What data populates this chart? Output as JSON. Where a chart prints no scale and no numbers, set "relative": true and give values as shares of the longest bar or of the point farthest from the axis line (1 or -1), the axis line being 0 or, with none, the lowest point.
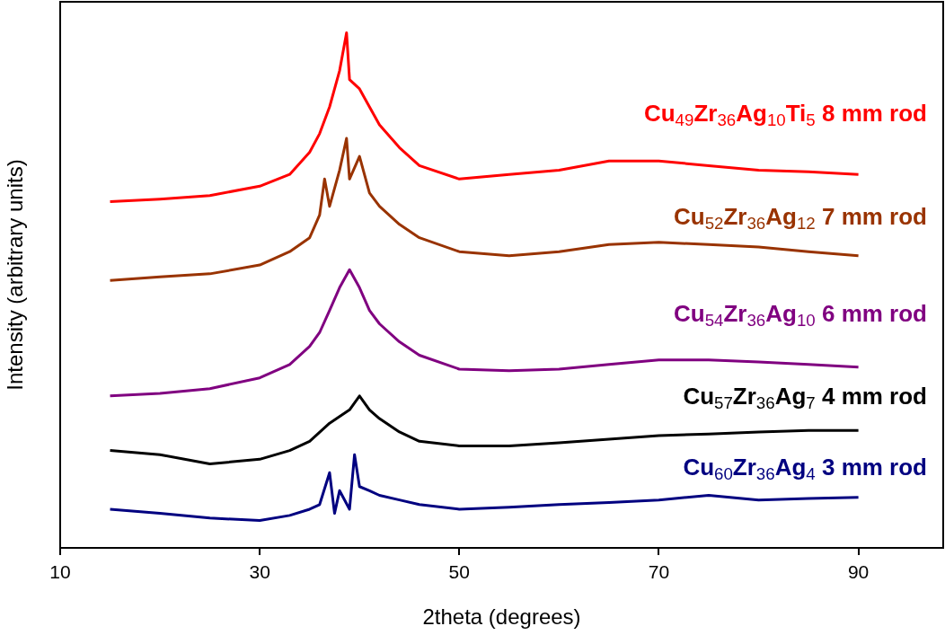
{
  "chart_data": {
    "type": "line",
    "relative": true,
    "xlabel": "2theta (degrees)",
    "ylabel": "Intensity (arbitrary units)",
    "xlim": [
      10,
      98.5
    ],
    "xticks": [
      10,
      30,
      50,
      70,
      90
    ],
    "grid": false,
    "legend": false,
    "marker": "none",
    "line_style": "solid",
    "series": [
      {
        "name": "Cu$_{49}$Zr$_{36}$Ag$_{10}$Ti$_{5}$ 8 mm rod",
        "color": "#ff0000",
        "x": [
          15,
          20,
          25,
          30,
          33,
          35,
          36,
          37,
          38,
          38.7,
          39,
          40,
          41,
          42,
          44,
          46,
          50,
          55,
          60,
          65,
          70,
          75,
          80,
          85,
          90
        ],
        "values": [
          0.672,
          0.677,
          0.684,
          0.702,
          0.725,
          0.768,
          0.804,
          0.856,
          0.926,
          1.0,
          0.909,
          0.891,
          0.856,
          0.821,
          0.777,
          0.742,
          0.716,
          0.725,
          0.733,
          0.751,
          0.751,
          0.742,
          0.733,
          0.73,
          0.725
        ]
      },
      {
        "name": "Cu$_{52}$Zr$_{36}$Ag$_{12}$ 7 mm rod",
        "color": "#993300",
        "x": [
          15,
          20,
          25,
          30,
          33,
          35,
          36,
          36.5,
          37,
          38,
          38.7,
          39,
          40,
          41,
          42,
          44,
          46,
          50,
          55,
          60,
          65,
          70,
          75,
          80,
          85,
          90
        ],
        "values": [
          0.519,
          0.526,
          0.532,
          0.549,
          0.575,
          0.602,
          0.646,
          0.716,
          0.663,
          0.733,
          0.795,
          0.716,
          0.76,
          0.689,
          0.663,
          0.628,
          0.602,
          0.575,
          0.567,
          0.575,
          0.589,
          0.593,
          0.589,
          0.584,
          0.575,
          0.567
        ]
      },
      {
        "name": "Cu$_{54}$Zr$_{36}$Ag$_{10}$ 6 mm rod",
        "color": "#800080",
        "x": [
          15,
          20,
          25,
          30,
          33,
          35,
          36,
          37,
          38,
          39,
          40,
          41,
          42,
          44,
          46,
          50,
          55,
          60,
          65,
          70,
          75,
          80,
          85,
          90
        ],
        "values": [
          0.295,
          0.3,
          0.309,
          0.33,
          0.356,
          0.391,
          0.418,
          0.461,
          0.505,
          0.54,
          0.505,
          0.461,
          0.435,
          0.4,
          0.374,
          0.347,
          0.344,
          0.347,
          0.356,
          0.365,
          0.365,
          0.361,
          0.356,
          0.351
        ]
      },
      {
        "name": "Cu$_{57}$Zr$_{36}$Ag$_{7}$ 4 mm rod",
        "color": "#000000",
        "x": [
          15,
          20,
          25,
          30,
          33,
          35,
          37,
          39,
          40,
          41,
          42,
          44,
          46,
          50,
          55,
          60,
          65,
          70,
          75,
          80,
          85,
          90
        ],
        "values": [
          0.189,
          0.181,
          0.163,
          0.172,
          0.189,
          0.207,
          0.242,
          0.268,
          0.295,
          0.268,
          0.251,
          0.225,
          0.207,
          0.198,
          0.198,
          0.204,
          0.211,
          0.218,
          0.221,
          0.225,
          0.228,
          0.228
        ]
      },
      {
        "name": "Cu$_{60}$Zr$_{36}$Ag$_{4}$ 3 mm rod",
        "color": "#000080",
        "x": [
          15,
          20,
          25,
          30,
          33,
          35,
          36,
          37,
          37.5,
          38,
          39,
          39.5,
          40,
          41,
          42,
          44,
          46,
          50,
          55,
          60,
          65,
          70,
          75,
          80,
          85,
          90
        ],
        "values": [
          0.075,
          0.067,
          0.058,
          0.053,
          0.063,
          0.075,
          0.084,
          0.146,
          0.067,
          0.111,
          0.075,
          0.181,
          0.119,
          0.111,
          0.102,
          0.093,
          0.084,
          0.075,
          0.079,
          0.084,
          0.088,
          0.093,
          0.102,
          0.093,
          0.096,
          0.098
        ]
      }
    ]
  }
}
